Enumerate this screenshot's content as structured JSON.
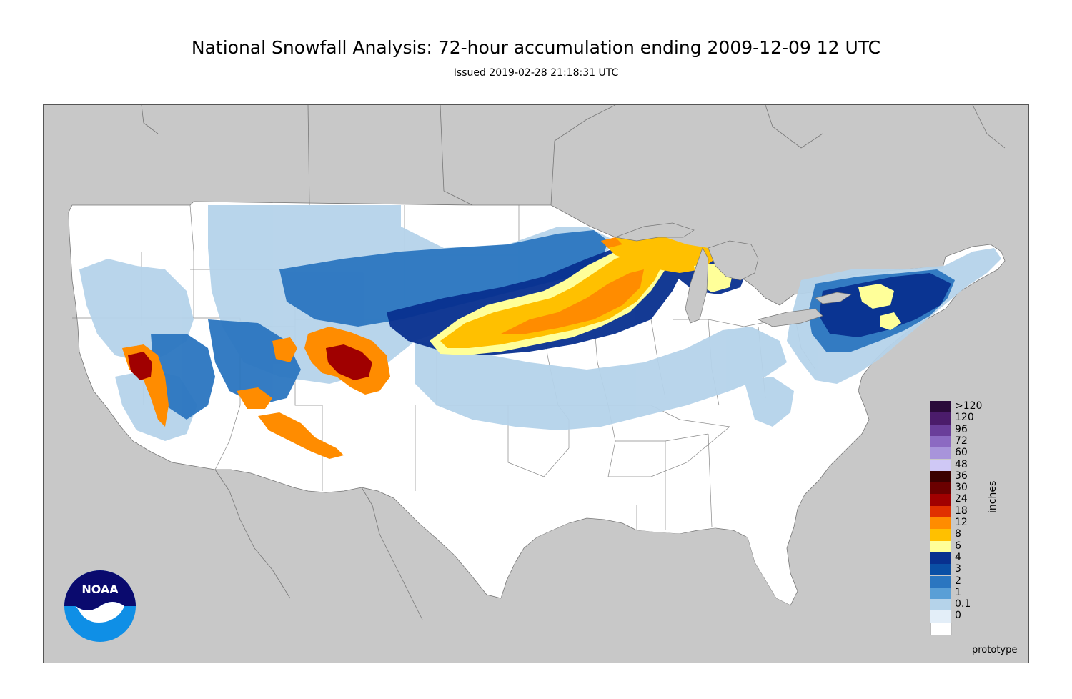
{
  "header": {
    "title": "National Snowfall Analysis: 72-hour accumulation ending 2009-12-09 12 UTC",
    "subtitle": "Issued 2019-02-28 21:18:31 UTC"
  },
  "map": {
    "background_color": "#c8c8c8",
    "land_color": "#ffffff",
    "border_color": "#555555",
    "watermark": "prototype"
  },
  "legend": {
    "unit": "inches",
    "bins": [
      {
        "label": ">120",
        "color": "#2a0a3a"
      },
      {
        "label": "120",
        "color": "#4b1c6b"
      },
      {
        "label": "96",
        "color": "#6a3e9a"
      },
      {
        "label": "72",
        "color": "#8c6ac2"
      },
      {
        "label": "60",
        "color": "#a894da"
      },
      {
        "label": "48",
        "color": "#cfc8f5"
      },
      {
        "label": "36",
        "color": "#3b0000"
      },
      {
        "label": "30",
        "color": "#6b0000"
      },
      {
        "label": "24",
        "color": "#a00000"
      },
      {
        "label": "18",
        "color": "#e03000"
      },
      {
        "label": "12",
        "color": "#ff8c00"
      },
      {
        "label": "8",
        "color": "#ffc000"
      },
      {
        "label": "6",
        "color": "#ffff99"
      },
      {
        "label": "4",
        "color": "#08308f"
      },
      {
        "label": "3",
        "color": "#0a4fa5"
      },
      {
        "label": "2",
        "color": "#2b76c0"
      },
      {
        "label": "1",
        "color": "#5a9fd6"
      },
      {
        "label": "0.1",
        "color": "#b5d3ea"
      },
      {
        "label": "0",
        "color": "#e3eef8"
      },
      {
        "label": "",
        "color": "#ffffff"
      }
    ]
  },
  "logo": {
    "text": "NOAA",
    "colors": {
      "dark": "#0a0a6e",
      "light": "#0f8fe6",
      "white": "#ffffff"
    }
  }
}
